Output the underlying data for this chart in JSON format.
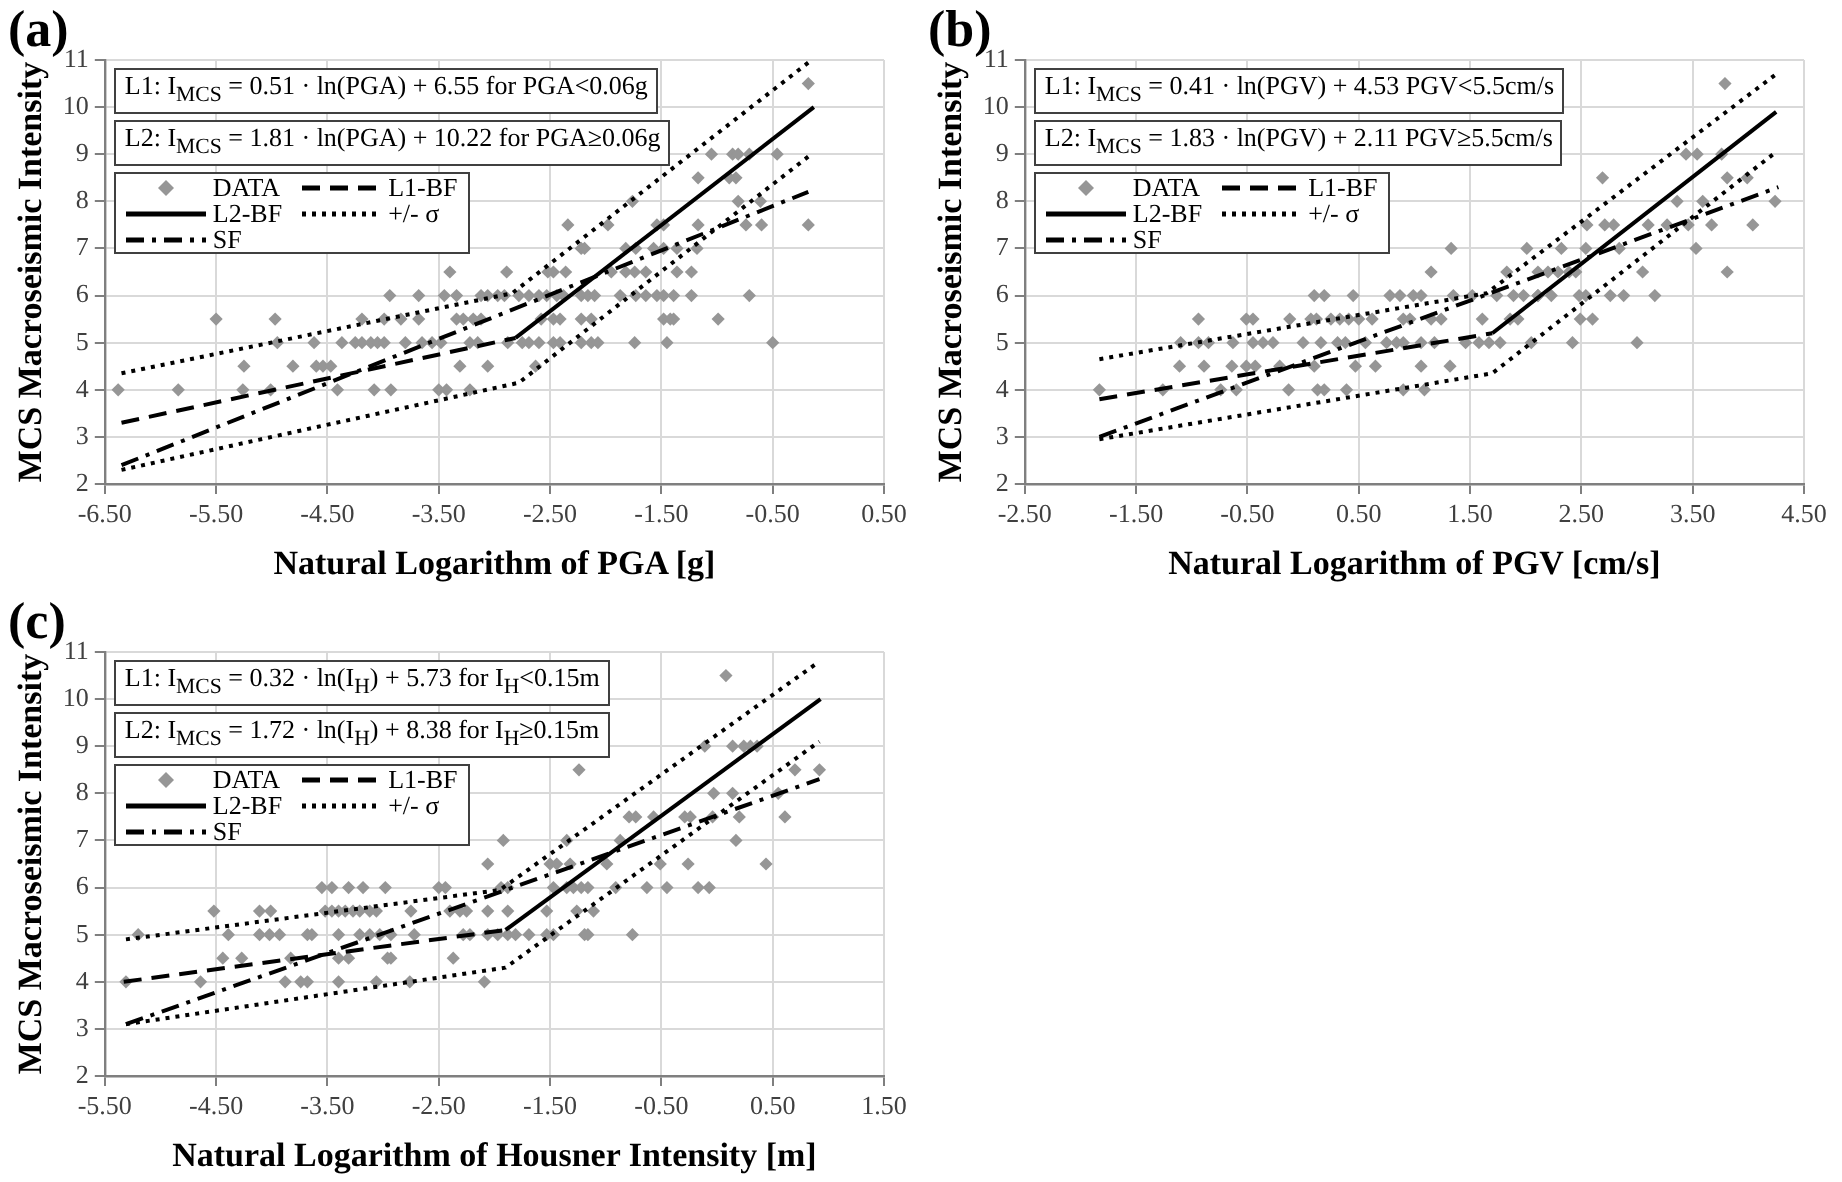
{
  "chart_data": [
    {
      "type": "scatter",
      "title": "(a)",
      "xlabel": "Natural Logarithm of PGA [g]",
      "ylabel": "MCS Macroseismic Intensity",
      "annotations": [
        "L1: I$_{MCS}$ = 0.51 · ln(PGA) + 6.55 for  PGA<0.06g",
        "L2: I$_{MCS}$ = 1.81 · ln(PGA) + 10.22 for  PGA≥0.06g"
      ],
      "xlim": [
        -6.5,
        0.5
      ],
      "xticks": [
        {
          "value": -6.5,
          "label": "-6.50"
        },
        {
          "value": -5.5,
          "label": "-5.50"
        },
        {
          "value": -4.5,
          "label": "-4.50"
        },
        {
          "value": -3.5,
          "label": "-3.50"
        },
        {
          "value": -2.5,
          "label": "-2.50"
        },
        {
          "value": -1.5,
          "label": "-1.50"
        },
        {
          "value": -0.5,
          "label": "-0.50"
        },
        {
          "value": 0.5,
          "label": "0.50"
        }
      ],
      "ylim": [
        2,
        11
      ],
      "yticks": [
        2,
        3,
        4,
        5,
        6,
        7,
        8,
        9,
        10,
        11
      ],
      "grid": true,
      "legend": "top left",
      "series": [
        {
          "name": "DATA",
          "type": "scatter",
          "marker": "diamond",
          "color": "#969696",
          "x": [
            -6.38,
            -5.84,
            -5.5,
            -5.25,
            -5.26,
            -4.97,
            -4.95,
            -5.01,
            -4.81,
            -4.62,
            -4.6,
            -4.54,
            -4.47,
            -4.41,
            -4.37,
            -4.19,
            -4.25,
            -4.19,
            -4.11,
            -4.05,
            -3.99,
            -4.08,
            -3.93,
            -3.94,
            -3.99,
            -3.84,
            -3.8,
            -3.68,
            -3.68,
            -3.65,
            -3.56,
            -3.48,
            -3.5,
            -3.43,
            -3.4,
            -3.45,
            -3.34,
            -3.34,
            -3.28,
            -3.31,
            -3.22,
            -3.22,
            -3.15,
            -3.19,
            -3.12,
            -3.12,
            -3.06,
            -2.97,
            -2.91,
            -3.06,
            -2.89,
            -2.88,
            -2.75,
            -2.69,
            -2.6,
            -2.78,
            -2.69,
            -2.6,
            -2.53,
            -2.63,
            -2.58,
            -2.52,
            -2.47,
            -2.44,
            -2.38,
            -2.47,
            -2.41,
            -2.47,
            -2.41,
            -2.36,
            -2.34,
            -2.22,
            -2.19,
            -2.22,
            -2.16,
            -2.1,
            -2.22,
            -2.13,
            -2.22,
            -2.13,
            -2.07,
            -1.95,
            -1.76,
            -1.98,
            -1.87,
            -1.74,
            -1.82,
            -1.74,
            -1.64,
            -1.82,
            -1.73,
            -1.73,
            -1.64,
            -1.54,
            -1.48,
            -1.39,
            -1.57,
            -1.48,
            -1.54,
            -1.48,
            -1.45,
            -1.48,
            -1.42,
            -1.39,
            -1.36,
            -1.36,
            -1.23,
            -1.23,
            -1.18,
            -1.17,
            -1.17,
            -1.05,
            -0.99,
            -0.86,
            -0.81,
            -0.89,
            -0.83,
            -0.81,
            -0.74,
            -0.71,
            -0.71,
            -0.61,
            -0.6,
            -0.5,
            -0.46,
            -0.18,
            -0.18
          ],
          "values": [
            4,
            4,
            5.5,
            4.5,
            4,
            5.5,
            5,
            4,
            4.5,
            5,
            4.5,
            4.5,
            4.5,
            4,
            5,
            5.5,
            5,
            5,
            5,
            5,
            5,
            4,
            4,
            6,
            5.5,
            5.5,
            5,
            6,
            5.5,
            5,
            5,
            5,
            4,
            4,
            6.5,
            6,
            6,
            5.5,
            5.5,
            4.5,
            4,
            5,
            5,
            5.5,
            5.5,
            6,
            6,
            6,
            6,
            4.5,
            6.5,
            5,
            5,
            5,
            5,
            6,
            6,
            6,
            6,
            4.5,
            5.5,
            6.5,
            6.5,
            6,
            6,
            5.5,
            5.5,
            5,
            5,
            6.5,
            7.5,
            7,
            7,
            6,
            6,
            6,
            5.5,
            5.5,
            5,
            5,
            5,
            6.5,
            8,
            7.5,
            6,
            5,
            6.5,
            6.5,
            6.5,
            7,
            7,
            6,
            6,
            6,
            6,
            6,
            7,
            7,
            7.5,
            7.5,
            5,
            5.5,
            5.5,
            5.5,
            6.5,
            7,
            6,
            6.5,
            7,
            7.5,
            8.5,
            9,
            5.5,
            9,
            9,
            8.5,
            8.5,
            8,
            7.5,
            9,
            6,
            8,
            7.5,
            5,
            9,
            10.5,
            7.5
          ]
        },
        {
          "name": "L1-BF",
          "type": "line",
          "marker": "none",
          "line_style": "dashed",
          "color": "#000000",
          "x": [
            -6.35,
            -2.81
          ],
          "values": [
            3.3,
            5.1
          ]
        },
        {
          "name": "L2-BF",
          "type": "line",
          "marker": "none",
          "line_style": "solid",
          "color": "#000000",
          "x": [
            -2.81,
            -0.13
          ],
          "values": [
            5.1,
            10
          ]
        },
        {
          "name": "+/- σ",
          "type": "line",
          "marker": "none",
          "line_style": "dotted",
          "color": "#000000",
          "x": [
            -6.35,
            -2.84,
            -0.15
          ],
          "values": [
            4.35,
            6.05,
            11
          ]
        },
        {
          "name": "SF",
          "type": "line",
          "marker": "none",
          "line_style": "dashdot",
          "color": "#000000",
          "x": [
            -6.35,
            -0.18
          ],
          "values": [
            2.4,
            8.2
          ]
        },
        {
          "type": "line",
          "marker": "none",
          "line_style": "dotted",
          "color": "#000000",
          "x": [
            -6.35,
            -2.78,
            -0.18
          ],
          "values": [
            2.3,
            4.15,
            8.95
          ]
        }
      ]
    },
    {
      "type": "scatter",
      "title": "(b)",
      "xlabel": "Natural Logarithm of PGV [cm/s]",
      "ylabel": "MCS Macroseismic Intensity",
      "annotations": [
        "L1: I$_{MCS}$ = 0.41 · ln(PGV) + 4.53 PGV<5.5cm/s",
        "L2: I$_{MCS}$ = 1.83 · ln(PGV) + 2.11 PGV≥5.5cm/s"
      ],
      "xlim": [
        -2.5,
        4.5
      ],
      "xticks": [
        {
          "value": -2.5,
          "label": "-2.50"
        },
        {
          "value": -1.5,
          "label": "-1.50"
        },
        {
          "value": -0.5,
          "label": "-0.50"
        },
        {
          "value": 0.5,
          "label": "0.50"
        },
        {
          "value": 1.5,
          "label": "1.50"
        },
        {
          "value": 2.5,
          "label": "2.50"
        },
        {
          "value": 3.5,
          "label": "3.50"
        },
        {
          "value": 4.5,
          "label": "4.50"
        }
      ],
      "ylim": [
        2,
        11
      ],
      "yticks": [
        2,
        3,
        4,
        5,
        6,
        7,
        8,
        9,
        10,
        11
      ],
      "grid": true,
      "legend": "top left",
      "series": [
        {
          "name": "DATA",
          "type": "scatter",
          "marker": "diamond",
          "color": "#969696",
          "x": [
            -1.83,
            -1.26,
            -1.11,
            -1.1,
            -0.94,
            -0.94,
            -0.85,
            -0.89,
            -0.74,
            -0.63,
            -0.64,
            -0.6,
            -0.51,
            -0.45,
            -0.51,
            -0.43,
            -0.45,
            -0.36,
            -0.27,
            -0.21,
            -0.12,
            -0.13,
            0.0,
            0.07,
            0.12,
            0.1,
            0.19,
            0.1,
            0.13,
            0.19,
            0.16,
            0.25,
            0.33,
            0.41,
            0.5,
            0.31,
            0.38,
            0.39,
            0.45,
            0.47,
            0.56,
            0.65,
            0.62,
            0.78,
            0.87,
            0.99,
            1.06,
            0.75,
            0.84,
            0.9,
            0.9,
            0.96,
            0.9,
            1.06,
            1.09,
            1.06,
            1.18,
            1.15,
            1.24,
            1.15,
            1.32,
            1.33,
            1.35,
            1.46,
            1.52,
            1.61,
            1.58,
            1.67,
            1.77,
            1.74,
            1.83,
            1.86,
            1.93,
            1.89,
            1.98,
            2.01,
            2.05,
            2.11,
            2.11,
            2.2,
            2.29,
            2.39,
            2.11,
            2.23,
            2.42,
            2.32,
            2.45,
            2.48,
            2.54,
            2.49,
            2.6,
            2.54,
            2.55,
            2.69,
            2.71,
            2.79,
            2.76,
            2.84,
            2.88,
            3.0,
            3.05,
            3.1,
            3.16,
            3.36,
            3.27,
            3.46,
            3.44,
            3.53,
            3.54,
            3.59,
            3.67,
            3.76,
            3.79,
            3.81,
            3.81,
            3.99,
            4.04,
            4.24
          ],
          "values": [
            4,
            4,
            4.5,
            5,
            5.5,
            5,
            5,
            4.5,
            4,
            5,
            4.5,
            4,
            5.5,
            5.5,
            4.5,
            4.5,
            5,
            5,
            5,
            4.5,
            5.5,
            4,
            5,
            5.5,
            5.5,
            6,
            6,
            4.5,
            4,
            4,
            5,
            5.5,
            5.5,
            5.5,
            5.5,
            5,
            5,
            4,
            6,
            4.5,
            5,
            4.5,
            5.5,
            6,
            6,
            6,
            6,
            5,
            5,
            5,
            5.5,
            5.5,
            4,
            4.5,
            4,
            5,
            5,
            5.5,
            5.5,
            6.5,
            4.5,
            7,
            6,
            5,
            6,
            5.5,
            5,
            5,
            5,
            6,
            6.5,
            5.5,
            5.5,
            6,
            6,
            7,
            5,
            6.5,
            6,
            6.5,
            6.5,
            6.5,
            6,
            6,
            5,
            7,
            6.5,
            6,
            6,
            5.5,
            5.5,
            7,
            7.5,
            8.5,
            7.5,
            7.5,
            6,
            7,
            6,
            5,
            6.5,
            7.5,
            6,
            8,
            7.5,
            7.5,
            9,
            7,
            9,
            8,
            7.5,
            9,
            10.5,
            6.5,
            8.5,
            8.5,
            7.5,
            8
          ]
        },
        {
          "name": "L1-BF",
          "type": "line",
          "marker": "none",
          "line_style": "dashed",
          "color": "#000000",
          "x": [
            -1.83,
            1.7
          ],
          "values": [
            3.8,
            5.2
          ]
        },
        {
          "name": "L2-BF",
          "type": "line",
          "marker": "none",
          "line_style": "solid",
          "color": "#000000",
          "x": [
            1.7,
            4.25
          ],
          "values": [
            5.2,
            9.9
          ]
        },
        {
          "name": "+/- σ",
          "type": "line",
          "marker": "none",
          "line_style": "dotted",
          "color": "#000000",
          "x": [
            -1.83,
            1.65,
            4.25
          ],
          "values": [
            4.65,
            6.05,
            10.7
          ]
        },
        {
          "name": "SF",
          "type": "line",
          "marker": "none",
          "line_style": "dashdot",
          "color": "#000000",
          "x": [
            -1.83,
            4.27
          ],
          "values": [
            3,
            8.3
          ]
        },
        {
          "type": "line",
          "marker": "none",
          "line_style": "dotted",
          "color": "#000000",
          "x": [
            -1.83,
            1.7,
            4.25
          ],
          "values": [
            2.95,
            4.35,
            9.05
          ]
        }
      ]
    },
    {
      "type": "scatter",
      "title": "(c)",
      "xlabel": "Natural Logarithm of Housner Intensity [m]",
      "ylabel": "MCS Macroseismic Intensity",
      "annotations": [
        "L1: I$_{MCS}$ = 0.32 · ln(I$_{H}$) + 5.73 for I$_{H}$<0.15m",
        "L2: I$_{MCS}$ = 1.72 · ln(I$_{H}$) + 8.38 for I$_{H}$≥0.15m"
      ],
      "xlim": [
        -5.5,
        1.5
      ],
      "xticks": [
        {
          "value": -5.5,
          "label": "-5.50"
        },
        {
          "value": -4.5,
          "label": "-4.50"
        },
        {
          "value": -3.5,
          "label": "-3.50"
        },
        {
          "value": -2.5,
          "label": "-2.50"
        },
        {
          "value": -1.5,
          "label": "-1.50"
        },
        {
          "value": -0.5,
          "label": "-0.50"
        },
        {
          "value": 0.5,
          "label": "0.50"
        },
        {
          "value": 1.5,
          "label": "1.50"
        }
      ],
      "ylim": [
        2,
        11
      ],
      "yticks": [
        2,
        3,
        4,
        5,
        6,
        7,
        8,
        9,
        10,
        11
      ],
      "grid": true,
      "legend": "top left",
      "series": [
        {
          "name": "DATA",
          "type": "scatter",
          "marker": "diamond",
          "color": "#969696",
          "x": [
            -5.31,
            -5.2,
            -4.64,
            -4.52,
            -4.39,
            -4.44,
            -4.27,
            -4.11,
            -4.01,
            -4.11,
            -4.02,
            -3.93,
            -3.88,
            -3.83,
            -3.68,
            -3.64,
            -3.74,
            -3.68,
            -3.55,
            -3.46,
            -3.31,
            -3.18,
            -2.98,
            -3.52,
            -3.46,
            -3.4,
            -3.34,
            -3.27,
            -3.21,
            -3.12,
            -3.06,
            -3.4,
            -3.21,
            -3.12,
            -3.4,
            -3.31,
            -3.4,
            -3.03,
            -2.93,
            -2.96,
            -2.93,
            -3.06,
            -2.75,
            -2.76,
            -2.72,
            -2.5,
            -2.44,
            -2.4,
            -2.31,
            -2.25,
            -2.28,
            -2.22,
            -2.37,
            -2.09,
            -2.06,
            -2.06,
            -2.06,
            -1.97,
            -1.88,
            -1.81,
            -1.92,
            -1.94,
            -1.88,
            -1.88,
            -1.69,
            -1.53,
            -1.53,
            -1.47,
            -1.5,
            -1.44,
            -1.47,
            -1.35,
            -1.24,
            -1.32,
            -1.35,
            -1.29,
            -1.22,
            -1.16,
            -1.26,
            -1.19,
            -1.16,
            -1.11,
            -0.99,
            -0.91,
            -0.87,
            -0.79,
            -0.73,
            -0.76,
            -0.63,
            -0.57,
            -0.51,
            -0.45,
            -0.29,
            -0.24,
            -0.26,
            -0.17,
            -0.07,
            -0.11,
            -0.04,
            -0.03,
            0.08,
            0.14,
            0.24,
            0.3,
            0.36,
            0.14,
            0.17,
            0.2,
            0.44,
            0.55,
            0.61,
            0.7,
            0.92
          ],
          "values": [
            4,
            5,
            4,
            5.5,
            5,
            4.5,
            4.5,
            5.5,
            5.5,
            5,
            5,
            5,
            4,
            4.5,
            5,
            5,
            4,
            4,
            6,
            6,
            6,
            6,
            6,
            5.5,
            5.5,
            5.5,
            5.5,
            5.5,
            5.5,
            5.5,
            5.5,
            5,
            5,
            5,
            4.5,
            4.5,
            4,
            5,
            5,
            4.5,
            4.5,
            4,
            5.5,
            4,
            5,
            6,
            6,
            5.5,
            5.5,
            5.5,
            5,
            5,
            4.5,
            4,
            6.5,
            5.5,
            5,
            5,
            5,
            5,
            7,
            6,
            6,
            5.5,
            5,
            5.5,
            5,
            5,
            6.5,
            6.5,
            6,
            7,
            8.5,
            6.5,
            6,
            6,
            6,
            6,
            5.5,
            5,
            5,
            5.5,
            6.5,
            6,
            7,
            7.5,
            7.5,
            5,
            6,
            7.5,
            6.5,
            6,
            7.5,
            7.5,
            6.5,
            6,
            6,
            9,
            7.5,
            8,
            10.5,
            9,
            9,
            9,
            9,
            8,
            7,
            7.5,
            6.5,
            8,
            7.5,
            8.5,
            8.5
          ]
        },
        {
          "name": "L1-BF",
          "type": "line",
          "marker": "none",
          "line_style": "dashed",
          "color": "#000000",
          "x": [
            -5.33,
            -1.9
          ],
          "values": [
            4,
            5.1
          ]
        },
        {
          "name": "L2-BF",
          "type": "line",
          "marker": "none",
          "line_style": "solid",
          "color": "#000000",
          "x": [
            -1.9,
            0.93
          ],
          "values": [
            5.1,
            10
          ]
        },
        {
          "name": "+/- σ",
          "type": "line",
          "marker": "none",
          "line_style": "dotted",
          "color": "#000000",
          "x": [
            -5.31,
            -1.95,
            0.92
          ],
          "values": [
            4.9,
            5.95,
            10.8
          ]
        },
        {
          "name": "SF",
          "type": "line",
          "marker": "none",
          "line_style": "dashdot",
          "color": "#000000",
          "x": [
            -5.31,
            0.92
          ],
          "values": [
            3.1,
            8.3
          ]
        },
        {
          "type": "line",
          "marker": "none",
          "line_style": "dotted",
          "color": "#000000",
          "x": [
            -5.31,
            -1.9,
            0.92
          ],
          "values": [
            3.1,
            4.3,
            9.1
          ]
        }
      ]
    }
  ]
}
